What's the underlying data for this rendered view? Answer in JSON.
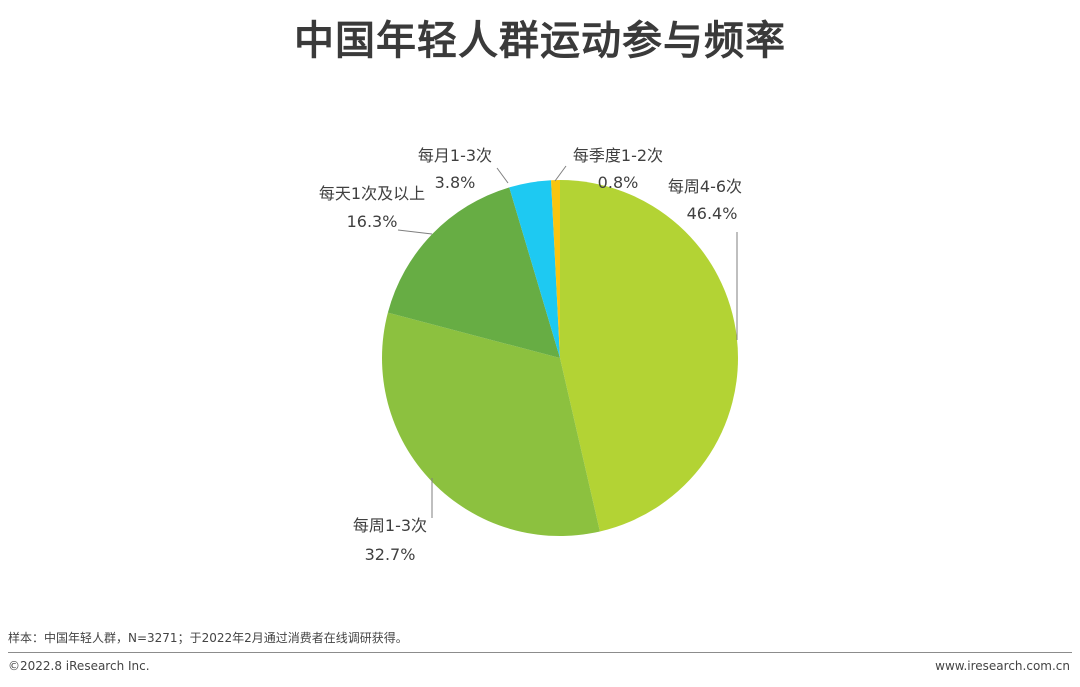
{
  "chart_data": {
    "type": "pie",
    "title": "中国年轻人群运动参与频率",
    "slices": [
      {
        "name": "每周4-6次",
        "value_label": "46.4%",
        "value": 46.4,
        "color": "#b3d334"
      },
      {
        "name": "每周1-3次",
        "value_label": "32.7%",
        "value": 32.7,
        "color": "#8cc13f"
      },
      {
        "name": "每天1次及以上",
        "value_label": "16.3%",
        "value": 16.3,
        "color": "#67ad44"
      },
      {
        "name": "每月1-3次",
        "value_label": "3.8%",
        "value": 3.8,
        "color": "#1ec9f2"
      },
      {
        "name": "每季度1-2次",
        "value_label": "0.8%",
        "value": 0.8,
        "color": "#f9c510"
      }
    ]
  },
  "footer": {
    "note": "样本：中国年轻人群，N=3271；于2022年2月通过消费者在线调研获得。",
    "copyright": "©2022.8 iResearch Inc.",
    "website": "www.iresearch.com.cn"
  }
}
